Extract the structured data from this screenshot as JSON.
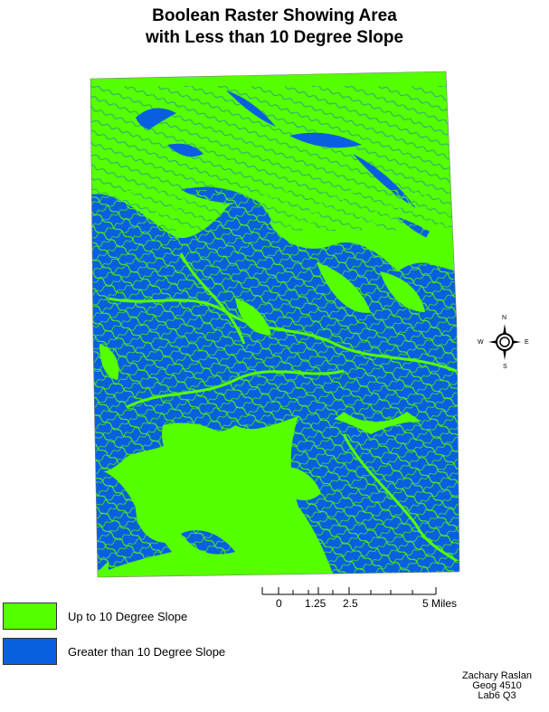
{
  "title": {
    "line1": "Boolean Raster Showing Area",
    "line2": "with Less than 10 Degree Slope"
  },
  "colors": {
    "low_slope": "#55ff00",
    "high_slope": "#0a5fe0"
  },
  "compass": {
    "n": "N",
    "s": "S",
    "e": "E",
    "w": "W"
  },
  "scale_bar": {
    "labels": [
      "0",
      "1.25",
      "2.5",
      "5 Miles"
    ]
  },
  "legend": {
    "items": [
      {
        "label": "Up to 10 Degree Slope",
        "color": "#55ff00"
      },
      {
        "label": "Greater than 10 Degree Slope",
        "color": "#0a5fe0"
      }
    ]
  },
  "credit": {
    "name": "Zachary Raslan",
    "course": "Geog 4510",
    "lab": "Lab6 Q3"
  }
}
